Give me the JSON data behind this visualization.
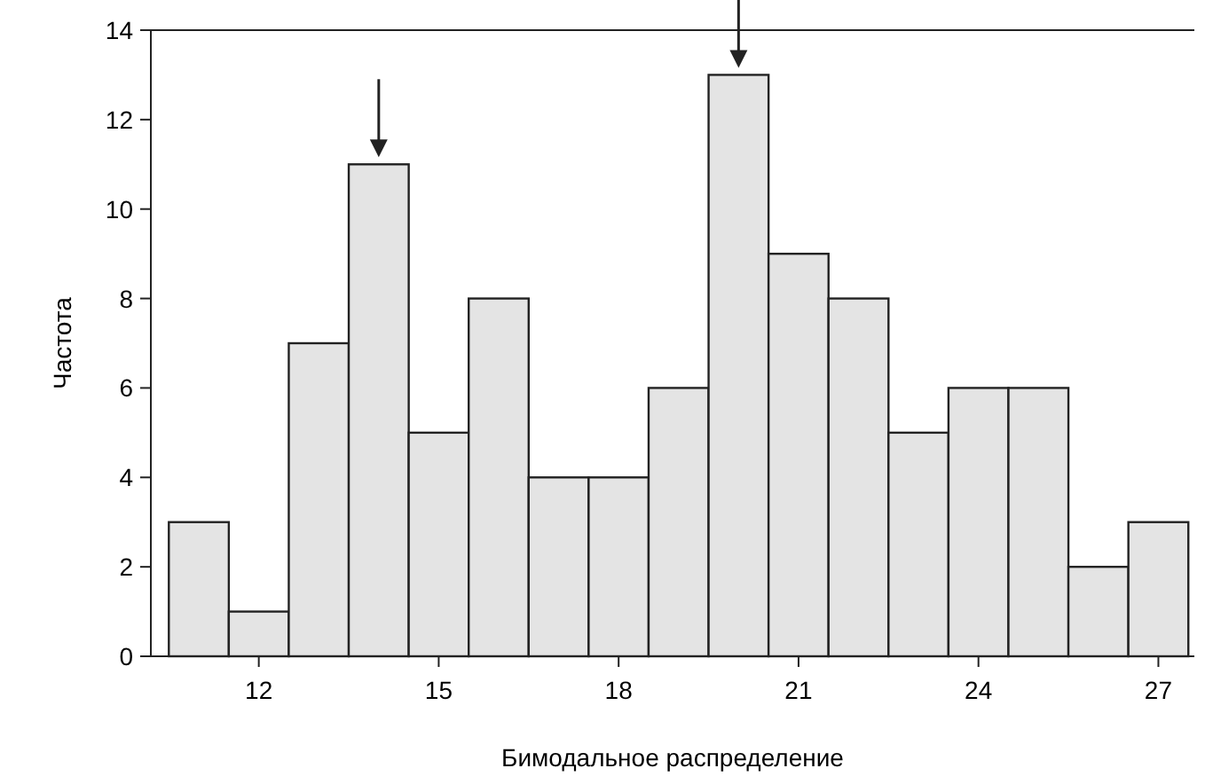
{
  "chart_data": {
    "type": "histogram",
    "xlabel": "Бимодальное распределение",
    "ylabel": "Частота",
    "bins": [
      10.5,
      11.5,
      12.5,
      13.5,
      14.5,
      15.5,
      16.5,
      17.5,
      18.5,
      19.5,
      20.5,
      21.5,
      22.5,
      23.5,
      24.5,
      25.5,
      26.5,
      27.5
    ],
    "values": [
      3,
      1,
      7,
      11,
      5,
      8,
      4,
      4,
      6,
      13,
      9,
      8,
      5,
      6,
      6,
      2,
      3
    ],
    "color": "#e4e4e4",
    "xlim": [
      10.2,
      27.6
    ],
    "xticks": [
      12,
      15,
      18,
      21,
      24,
      27
    ],
    "ylim": [
      0,
      14
    ],
    "yticks": [
      0,
      2,
      4,
      6,
      8,
      10,
      12,
      14
    ],
    "grid": false
  }
}
